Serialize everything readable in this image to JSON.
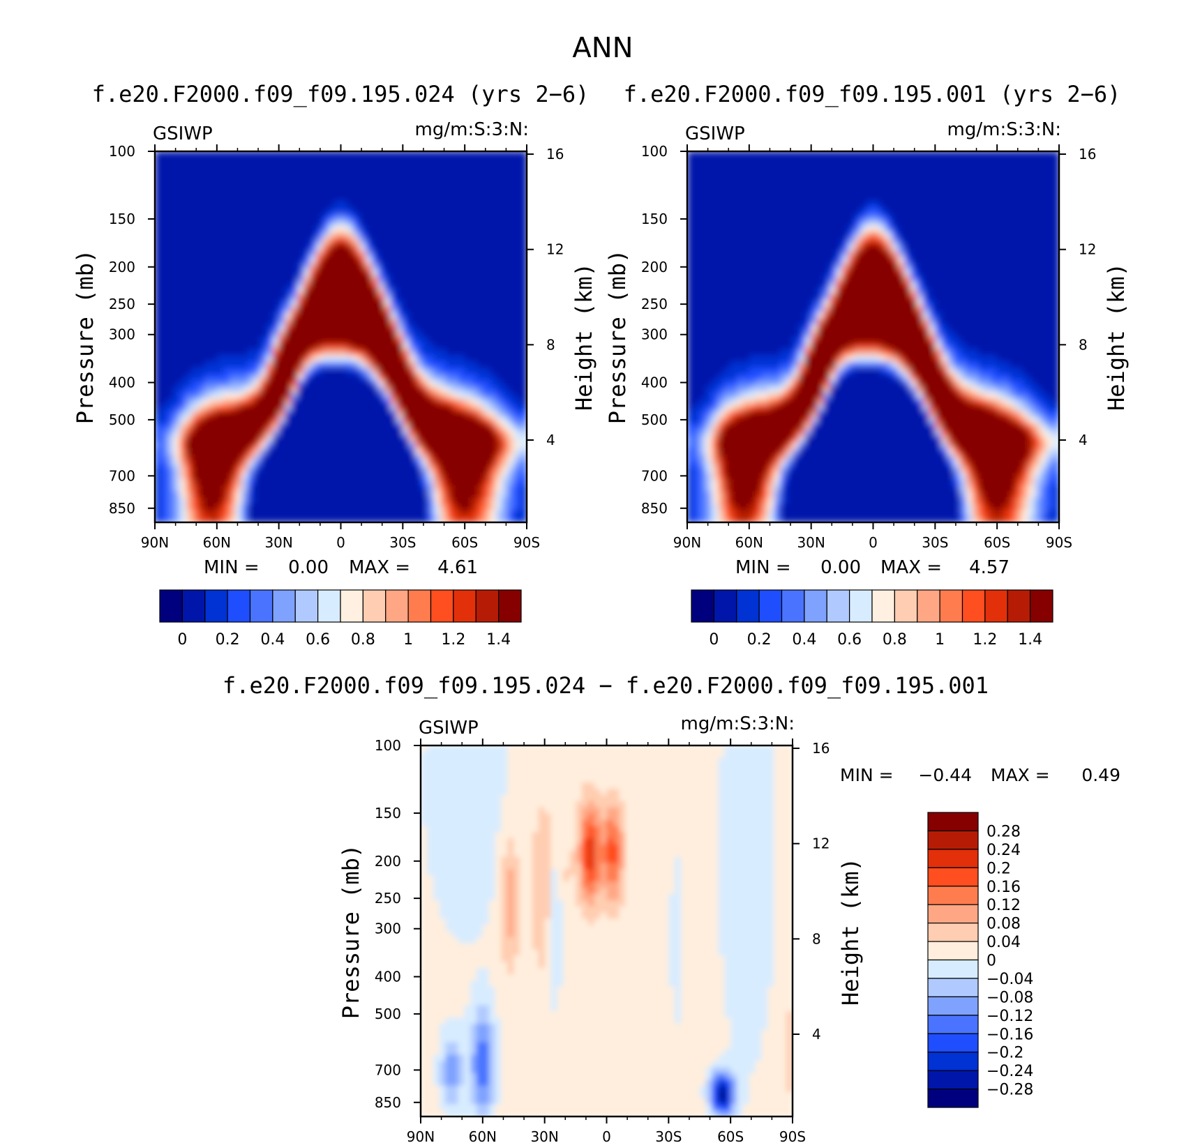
{
  "figure_title": "ANN",
  "colors": {
    "abs_levels": [
      "#00007f",
      "#0016aa",
      "#0032d4",
      "#1f4eff",
      "#4a74ff",
      "#7fa2ff",
      "#b0caff",
      "#d8ecff",
      "#fff0e1",
      "#ffcdb1",
      "#ffa785",
      "#ff7c4f",
      "#ff4e1f",
      "#e2300a",
      "#b61c05",
      "#860000"
    ],
    "diff_levels": [
      "#00007f",
      "#0016aa",
      "#0032d4",
      "#1f4eff",
      "#4a74ff",
      "#7fa2ff",
      "#b0caff",
      "#d8ecff",
      "#ffeedd",
      "#ffcdb1",
      "#ffa785",
      "#ff7c4f",
      "#ff4e1f",
      "#e2300a",
      "#b61c05",
      "#860000"
    ]
  },
  "chart_data": [
    {
      "type": "heatmap",
      "title": "f.e20.F2000.f09_f09.195.024 (yrs 2−6)",
      "variable": "GSIWP",
      "units": "mg/m:S:3:N:",
      "xlabel": "",
      "ylabel": "Pressure (mb)",
      "y2label": "Height (km)",
      "x_ticks": [
        "90N",
        "60N",
        "30N",
        "0",
        "30S",
        "60S",
        "90S"
      ],
      "y_ticks": [
        "100",
        "150",
        "200",
        "250",
        "300",
        "400",
        "500",
        "700",
        "850"
      ],
      "y2_ticks": [
        "16",
        "12",
        "8",
        "4"
      ],
      "min_label": "MIN =",
      "min_value": "0.00",
      "max_label": "MAX =",
      "max_value": "4.61",
      "colorbar_labels": [
        "0",
        "0.2",
        "0.4",
        "0.6",
        "0.8",
        "1",
        "1.2",
        "1.4"
      ],
      "variant": "a"
    },
    {
      "type": "heatmap",
      "title": "f.e20.F2000.f09_f09.195.001 (yrs 2−6)",
      "variable": "GSIWP",
      "units": "mg/m:S:3:N:",
      "xlabel": "",
      "ylabel": "Pressure (mb)",
      "y2label": "Height (km)",
      "x_ticks": [
        "90N",
        "60N",
        "30N",
        "0",
        "30S",
        "60S",
        "90S"
      ],
      "y_ticks": [
        "100",
        "150",
        "200",
        "250",
        "300",
        "400",
        "500",
        "700",
        "850"
      ],
      "y2_ticks": [
        "16",
        "12",
        "8",
        "4"
      ],
      "min_label": "MIN =",
      "min_value": "0.00",
      "max_label": "MAX =",
      "max_value": "4.57",
      "colorbar_labels": [
        "0",
        "0.2",
        "0.4",
        "0.6",
        "0.8",
        "1",
        "1.2",
        "1.4"
      ],
      "variant": "b"
    },
    {
      "type": "heatmap",
      "title": "f.e20.F2000.f09_f09.195.024 − f.e20.F2000.f09_f09.195.001",
      "variable": "GSIWP",
      "units": "mg/m:S:3:N:",
      "xlabel": "",
      "ylabel": "Pressure (mb)",
      "y2label": "Height (km)",
      "x_ticks": [
        "90N",
        "60N",
        "30N",
        "0",
        "30S",
        "60S",
        "90S"
      ],
      "y_ticks": [
        "100",
        "150",
        "200",
        "250",
        "300",
        "400",
        "500",
        "700",
        "850"
      ],
      "y2_ticks": [
        "16",
        "12",
        "8",
        "4"
      ],
      "min_label": "MIN =",
      "min_value": "−0.44",
      "max_label": "MAX =",
      "max_value": "0.49",
      "colorbar_labels": [
        "0.28",
        "0.24",
        "0.2",
        "0.16",
        "0.12",
        "0.08",
        "0.04",
        "0",
        "−0.04",
        "−0.08",
        "−0.12",
        "−0.16",
        "−0.2",
        "−0.24",
        "−0.28"
      ]
    }
  ]
}
